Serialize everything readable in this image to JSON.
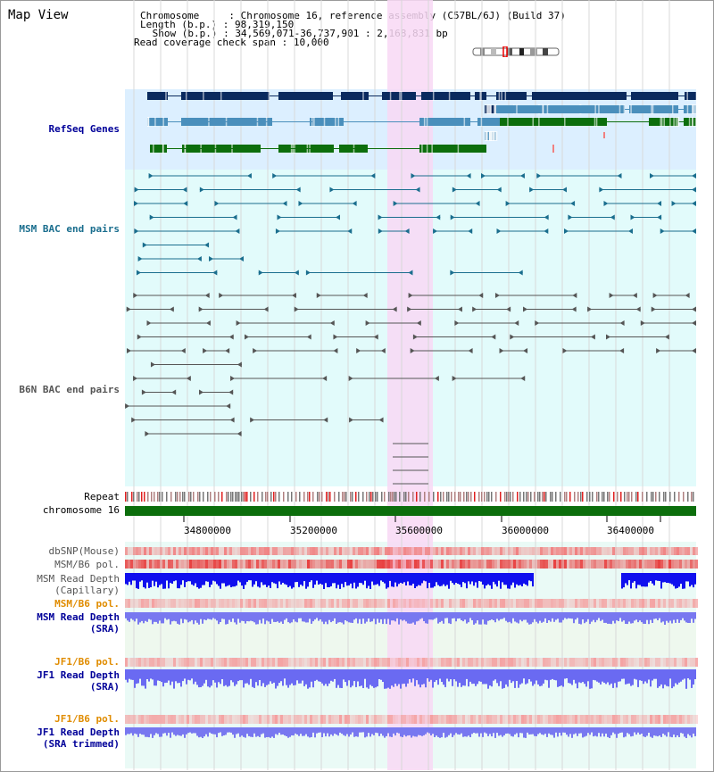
{
  "title": "Map View",
  "info": [
    {
      "key": "Chromosome     ",
      "value": "Chromosome 16, reference assembly (C57BL/6J) (Build 37)"
    },
    {
      "key": "Length (b.p.) ",
      "value": "98,319,150"
    },
    {
      "key": " Show (b.p.) ",
      "value": "34,569,071-36,737,901 : 2,168,831 bp"
    },
    {
      "key": "Read coverage check span",
      "value": "10,000"
    }
  ],
  "tracks": {
    "refseq": "RefSeq Genes",
    "msm_bac": "MSM BAC end pairs",
    "b6n_bac": "B6N BAC end pairs",
    "repeat": "Repeat",
    "chromosome": "chromosome 16",
    "dbsnp": "dbSNP(Mouse)",
    "msm_b6_pol": "MSM/B6 pol.",
    "msm_depth_cap_1": "MSM Read Depth",
    "msm_depth_cap_2": "(Capillary)",
    "msm_b6_pol_2": "MSM/B6 pol.",
    "msm_depth_sra_1": "MSM Read Depth",
    "msm_depth_sra_2": "(SRA)",
    "jf1_b6_pol": "JF1/B6 pol.",
    "jf1_depth_sra_1": "JF1 Read Depth",
    "jf1_depth_sra_2": "(SRA)",
    "jf1_b6_pol_2": "JF1/B6 pol.",
    "jf1_depth_trim_1": "JF1 Read Depth",
    "jf1_depth_trim_2": "(SRA trimmed)"
  },
  "axis_ticks": [
    "34800000",
    "35200000",
    "35600000",
    "36000000",
    "36400000"
  ],
  "colors": {
    "refseq_bg": "#dcefff",
    "bac_bg": "#e2fbfb",
    "highlight": "#f8d8f4",
    "gene_dark": "#0a2a5e",
    "gene_mid": "#4a8fbc",
    "gene_green": "#0c6e0c",
    "msm_pair": "#1a6e8e",
    "b6n_pair": "#555555",
    "depth_blue": "#1010ee",
    "depth_light": "#7878f0",
    "pol_red": "#e84040",
    "label_blue": "#000099",
    "label_orange": "#e08c00"
  }
}
